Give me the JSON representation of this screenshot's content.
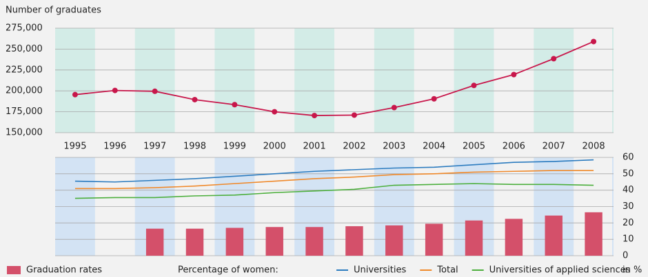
{
  "chart_data": [
    {
      "type": "line",
      "y_label": "Number of graduates",
      "categories": [
        "1995",
        "1996",
        "1997",
        "1998",
        "1999",
        "2000",
        "2001",
        "2002",
        "2003",
        "2004",
        "2005",
        "2006",
        "2007",
        "2008"
      ],
      "values": [
        195500,
        200500,
        199500,
        189500,
        183500,
        175000,
        170500,
        171000,
        180000,
        190500,
        206500,
        219500,
        238500,
        259000
      ],
      "color": "#c8174b",
      "ylim": [
        150000,
        275000
      ],
      "yticks": [
        {
          "value": 150000,
          "label": "150,000"
        },
        {
          "value": 175000,
          "label": "175,000"
        },
        {
          "value": 200000,
          "label": "200,000"
        },
        {
          "value": 225000,
          "label": "225,000"
        },
        {
          "value": 250000,
          "label": "250,000"
        },
        {
          "value": 275000,
          "label": "275,000"
        }
      ],
      "grid": true,
      "band_color": "#d3ece7"
    },
    {
      "type": "bar_line",
      "legend_title": "Percentage of women:",
      "unit_label": "in %",
      "ylim": [
        0,
        60
      ],
      "yticks": [
        0,
        10,
        20,
        30,
        40,
        50,
        60
      ],
      "grid": true,
      "band_color": "#d3e3f4",
      "series": [
        {
          "name": "Graduation rates",
          "kind": "bar",
          "color": "#d4506a",
          "values": [
            null,
            null,
            16.5,
            16.5,
            17,
            17.5,
            17.5,
            18,
            18.5,
            19.5,
            21.5,
            22.5,
            24.5,
            26.5
          ]
        },
        {
          "name": "Universities",
          "kind": "line",
          "color": "#2b7bbf",
          "values": [
            45.5,
            45,
            46,
            47,
            48.5,
            50,
            51.5,
            52.5,
            53.5,
            54,
            55.5,
            57,
            57.5,
            58.5
          ]
        },
        {
          "name": "Total",
          "kind": "line",
          "color": "#f0892a",
          "values": [
            41,
            41,
            41.5,
            42.5,
            44,
            45.5,
            47,
            48,
            49.5,
            50,
            51,
            51.5,
            52,
            52
          ]
        },
        {
          "name": "Universities of applied sciences",
          "kind": "line",
          "color": "#4caf3c",
          "values": [
            35,
            35.5,
            35.5,
            36.5,
            37,
            38.5,
            39.5,
            40.5,
            43,
            43.5,
            44,
            43.5,
            43.5,
            43
          ]
        }
      ]
    }
  ]
}
